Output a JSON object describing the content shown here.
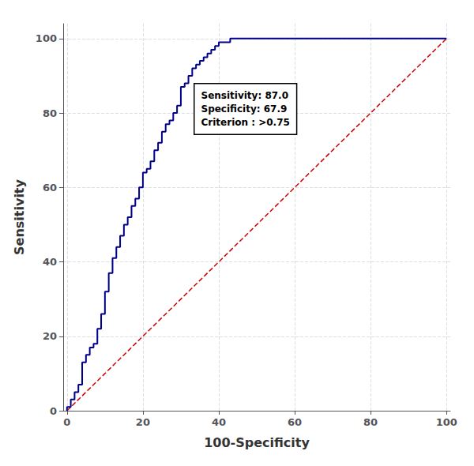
{
  "chart_data": {
    "type": "line",
    "title": "",
    "xlabel": "100-Specificity",
    "ylabel": "Sensitivity",
    "xlim": [
      -1,
      101
    ],
    "ylim": [
      0,
      104
    ],
    "xticks": [
      0,
      20,
      40,
      60,
      80,
      100
    ],
    "yticks": [
      0,
      20,
      40,
      60,
      80,
      100
    ],
    "grid": true,
    "annotation": "Sensitivity: 87.0\nSpecificity: 67.9\nCriterion : >0.75",
    "series": [
      {
        "color": "#00008B",
        "line_style": "solid",
        "x": [
          0,
          0,
          1,
          1,
          2,
          2,
          3,
          3,
          4,
          4,
          5,
          5,
          6,
          6,
          7,
          7,
          8,
          8,
          9,
          9,
          10,
          10,
          11,
          11,
          12,
          12,
          13,
          13,
          14,
          14,
          15,
          15,
          16,
          16,
          17,
          17,
          18,
          18,
          19,
          19,
          20,
          20,
          21,
          21,
          22,
          22,
          23,
          23,
          24,
          24,
          25,
          25,
          26,
          26,
          27,
          27,
          28,
          28,
          29,
          29,
          30,
          30,
          31,
          31,
          32,
          32,
          33,
          33,
          34,
          34,
          35,
          35,
          36,
          36,
          37,
          37,
          38,
          38,
          39,
          39,
          40,
          40,
          41,
          41,
          42,
          42,
          43,
          43,
          44,
          44,
          45,
          45,
          50,
          50,
          55,
          55,
          60,
          60,
          65,
          65,
          70,
          70,
          75,
          75,
          80,
          80,
          85,
          85,
          90,
          90,
          95,
          95,
          100,
          100
        ],
        "values": [
          0,
          1,
          1,
          3,
          3,
          5,
          5,
          7,
          7,
          13,
          13,
          15,
          15,
          17,
          17,
          18,
          18,
          22,
          22,
          26,
          26,
          32,
          32,
          37,
          37,
          41,
          41,
          44,
          44,
          47,
          47,
          50,
          50,
          52,
          52,
          55,
          55,
          57,
          57,
          60,
          60,
          64,
          64,
          65,
          65,
          67,
          67,
          70,
          70,
          72,
          72,
          75,
          75,
          77,
          77,
          78,
          78,
          80,
          80,
          82,
          82,
          87,
          87,
          88,
          88,
          90,
          90,
          92,
          92,
          93,
          93,
          94,
          94,
          95,
          95,
          96,
          96,
          97,
          97,
          98,
          98,
          99,
          99,
          99,
          99,
          99,
          99,
          100,
          100,
          100,
          100,
          100,
          100,
          100,
          100,
          100,
          100,
          100,
          100,
          100,
          100,
          100,
          100,
          100,
          100,
          100,
          100,
          100,
          100,
          100,
          100,
          100,
          100,
          100
        ]
      },
      {
        "color": "#cc0000",
        "line_style": "dashed",
        "x": [
          0,
          100
        ],
        "values": [
          0,
          100
        ]
      }
    ]
  }
}
